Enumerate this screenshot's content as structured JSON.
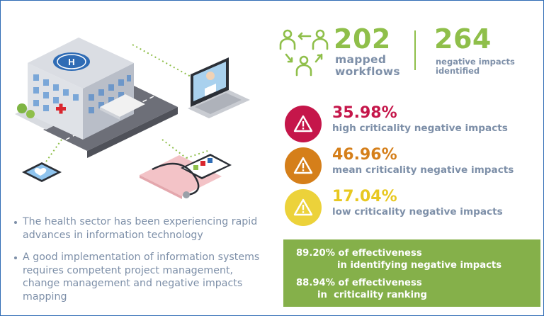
{
  "bullets": [
    "The health sector has been experiencing rapid advances in information technology",
    "A good implementation of information systems requires competent project management, change management and negative impacts mapping"
  ],
  "stats": {
    "workflows": {
      "value": "202",
      "label_line1": "mapped",
      "label_line2": "workflows"
    },
    "impacts": {
      "value": "264",
      "label_line1": "negative impacts",
      "label_line2": "identified"
    }
  },
  "criticality": [
    {
      "percent": "35.98%",
      "label": "high criticality negative impacts",
      "color": "#c5164a"
    },
    {
      "percent": "46.96%",
      "label": "mean criticality negative impacts",
      "color": "#d57f1a"
    },
    {
      "percent": "17.04%",
      "label": "low criticality negative impacts",
      "color": "#ecd23a"
    }
  ],
  "effectiveness": {
    "line1": "89.20% of effectiveness",
    "line2": "in identifying negative impacts",
    "line3": "88.94% of effectiveness",
    "line4": "in  criticality ranking"
  },
  "colors": {
    "accent_green": "#8fbf4a",
    "box_green": "#85b04a",
    "text_gray": "#7d8fa8",
    "border_blue": "#2f6cb5"
  },
  "icons": [
    "hospital-building-illustration",
    "laptop-doctor-illustration",
    "smartphone-heart-illustration",
    "clipboard-stethoscope-illustration",
    "workflow-people-icon",
    "warning-triangle-icon"
  ]
}
